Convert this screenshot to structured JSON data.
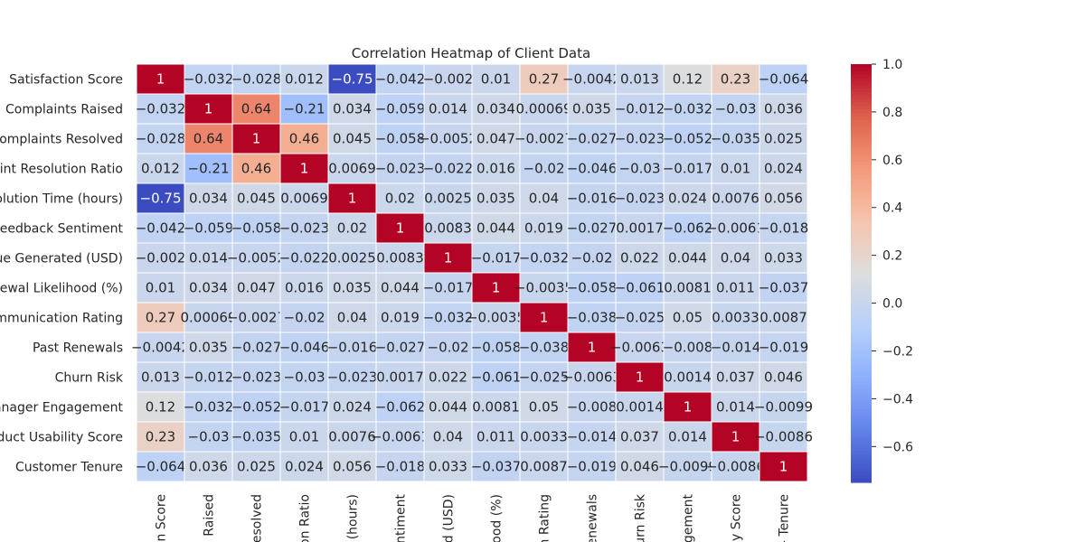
{
  "chart_data": {
    "type": "heatmap",
    "title": "Correlation Heatmap of Client Data",
    "row_labels": [
      "Satisfaction Score",
      "Complaints Raised",
      "Complaints Resolved",
      "aint Resolution Ratio",
      "solution Time (hours)",
      "Feedback Sentiment",
      "ue Generated (USD)",
      "newal Likelihood (%)",
      "ommunication Rating",
      "Past Renewals",
      "Churn Risk",
      "anager Engagement",
      "oduct Usability Score",
      "Customer Tenure"
    ],
    "col_labels": [
      "n Score",
      "Raised",
      "esolved",
      "on Ratio",
      "(hours)",
      "entiment",
      "d (USD)",
      "ood (%)",
      "n Rating",
      "enewals",
      "urn Risk",
      "gement",
      "y Score",
      "- Tenure"
    ],
    "values": [
      [
        1,
        -0.032,
        -0.028,
        0.012,
        -0.75,
        -0.042,
        -0.002,
        0.01,
        0.27,
        -0.0042,
        0.013,
        0.12,
        0.23,
        -0.064
      ],
      [
        -0.032,
        1,
        0.64,
        -0.21,
        0.034,
        -0.059,
        0.014,
        0.034,
        0.00069,
        0.035,
        -0.012,
        -0.032,
        -0.03,
        0.036
      ],
      [
        -0.028,
        0.64,
        1,
        0.46,
        0.045,
        -0.058,
        -0.0052,
        0.047,
        -0.0027,
        -0.027,
        -0.023,
        -0.052,
        -0.035,
        0.025
      ],
      [
        0.012,
        -0.21,
        0.46,
        1,
        0.0069,
        -0.023,
        -0.022,
        0.016,
        -0.02,
        -0.046,
        -0.03,
        -0.017,
        0.01,
        0.024
      ],
      [
        -0.75,
        0.034,
        0.045,
        0.0069,
        1,
        0.02,
        0.0025,
        0.035,
        0.04,
        -0.016,
        -0.023,
        0.024,
        0.0076,
        0.056
      ],
      [
        -0.042,
        -0.059,
        -0.058,
        -0.023,
        0.02,
        1,
        0.0083,
        0.044,
        0.019,
        -0.027,
        0.0017,
        -0.062,
        -0.0061,
        -0.018
      ],
      [
        -0.002,
        0.014,
        -0.0052,
        -0.022,
        0.0025,
        0.0083,
        1,
        -0.017,
        -0.032,
        -0.02,
        0.022,
        0.044,
        0.04,
        0.033
      ],
      [
        0.01,
        0.034,
        0.047,
        0.016,
        0.035,
        0.044,
        -0.017,
        1,
        -0.0035,
        -0.058,
        -0.061,
        0.0081,
        0.011,
        -0.037
      ],
      [
        0.27,
        0.00069,
        -0.0027,
        -0.02,
        0.04,
        0.019,
        -0.032,
        -0.0035,
        1,
        -0.038,
        -0.025,
        0.05,
        0.0033,
        0.0087
      ],
      [
        -0.0042,
        0.035,
        -0.027,
        -0.046,
        -0.016,
        -0.027,
        -0.02,
        -0.058,
        -0.038,
        1,
        -0.0063,
        -0.008,
        -0.014,
        -0.019
      ],
      [
        0.013,
        -0.012,
        -0.023,
        -0.03,
        -0.023,
        0.0017,
        0.022,
        -0.061,
        -0.025,
        -0.0063,
        1,
        0.0014,
        0.037,
        0.046
      ],
      [
        0.12,
        -0.032,
        -0.052,
        -0.017,
        0.024,
        -0.062,
        0.044,
        0.0081,
        0.05,
        -0.008,
        0.0014,
        1,
        0.014,
        -0.0099
      ],
      [
        0.23,
        -0.03,
        -0.035,
        0.01,
        0.0076,
        -0.0061,
        0.04,
        0.011,
        0.0033,
        -0.014,
        0.037,
        0.014,
        1,
        -0.0086
      ],
      [
        -0.064,
        0.036,
        0.025,
        0.024,
        0.056,
        -0.018,
        0.033,
        -0.037,
        0.0087,
        -0.019,
        0.046,
        -0.0099,
        -0.0086,
        1
      ]
    ],
    "colormap": "coolwarm",
    "vmin": -0.75,
    "vmax": 1.0,
    "colorbar_ticks": [
      "1.0",
      "0.8",
      "0.6",
      "0.4",
      "0.2",
      "0.0",
      "−0.2",
      "−0.4",
      "−0.6"
    ],
    "grid": true,
    "legend": "colorbar-right"
  }
}
